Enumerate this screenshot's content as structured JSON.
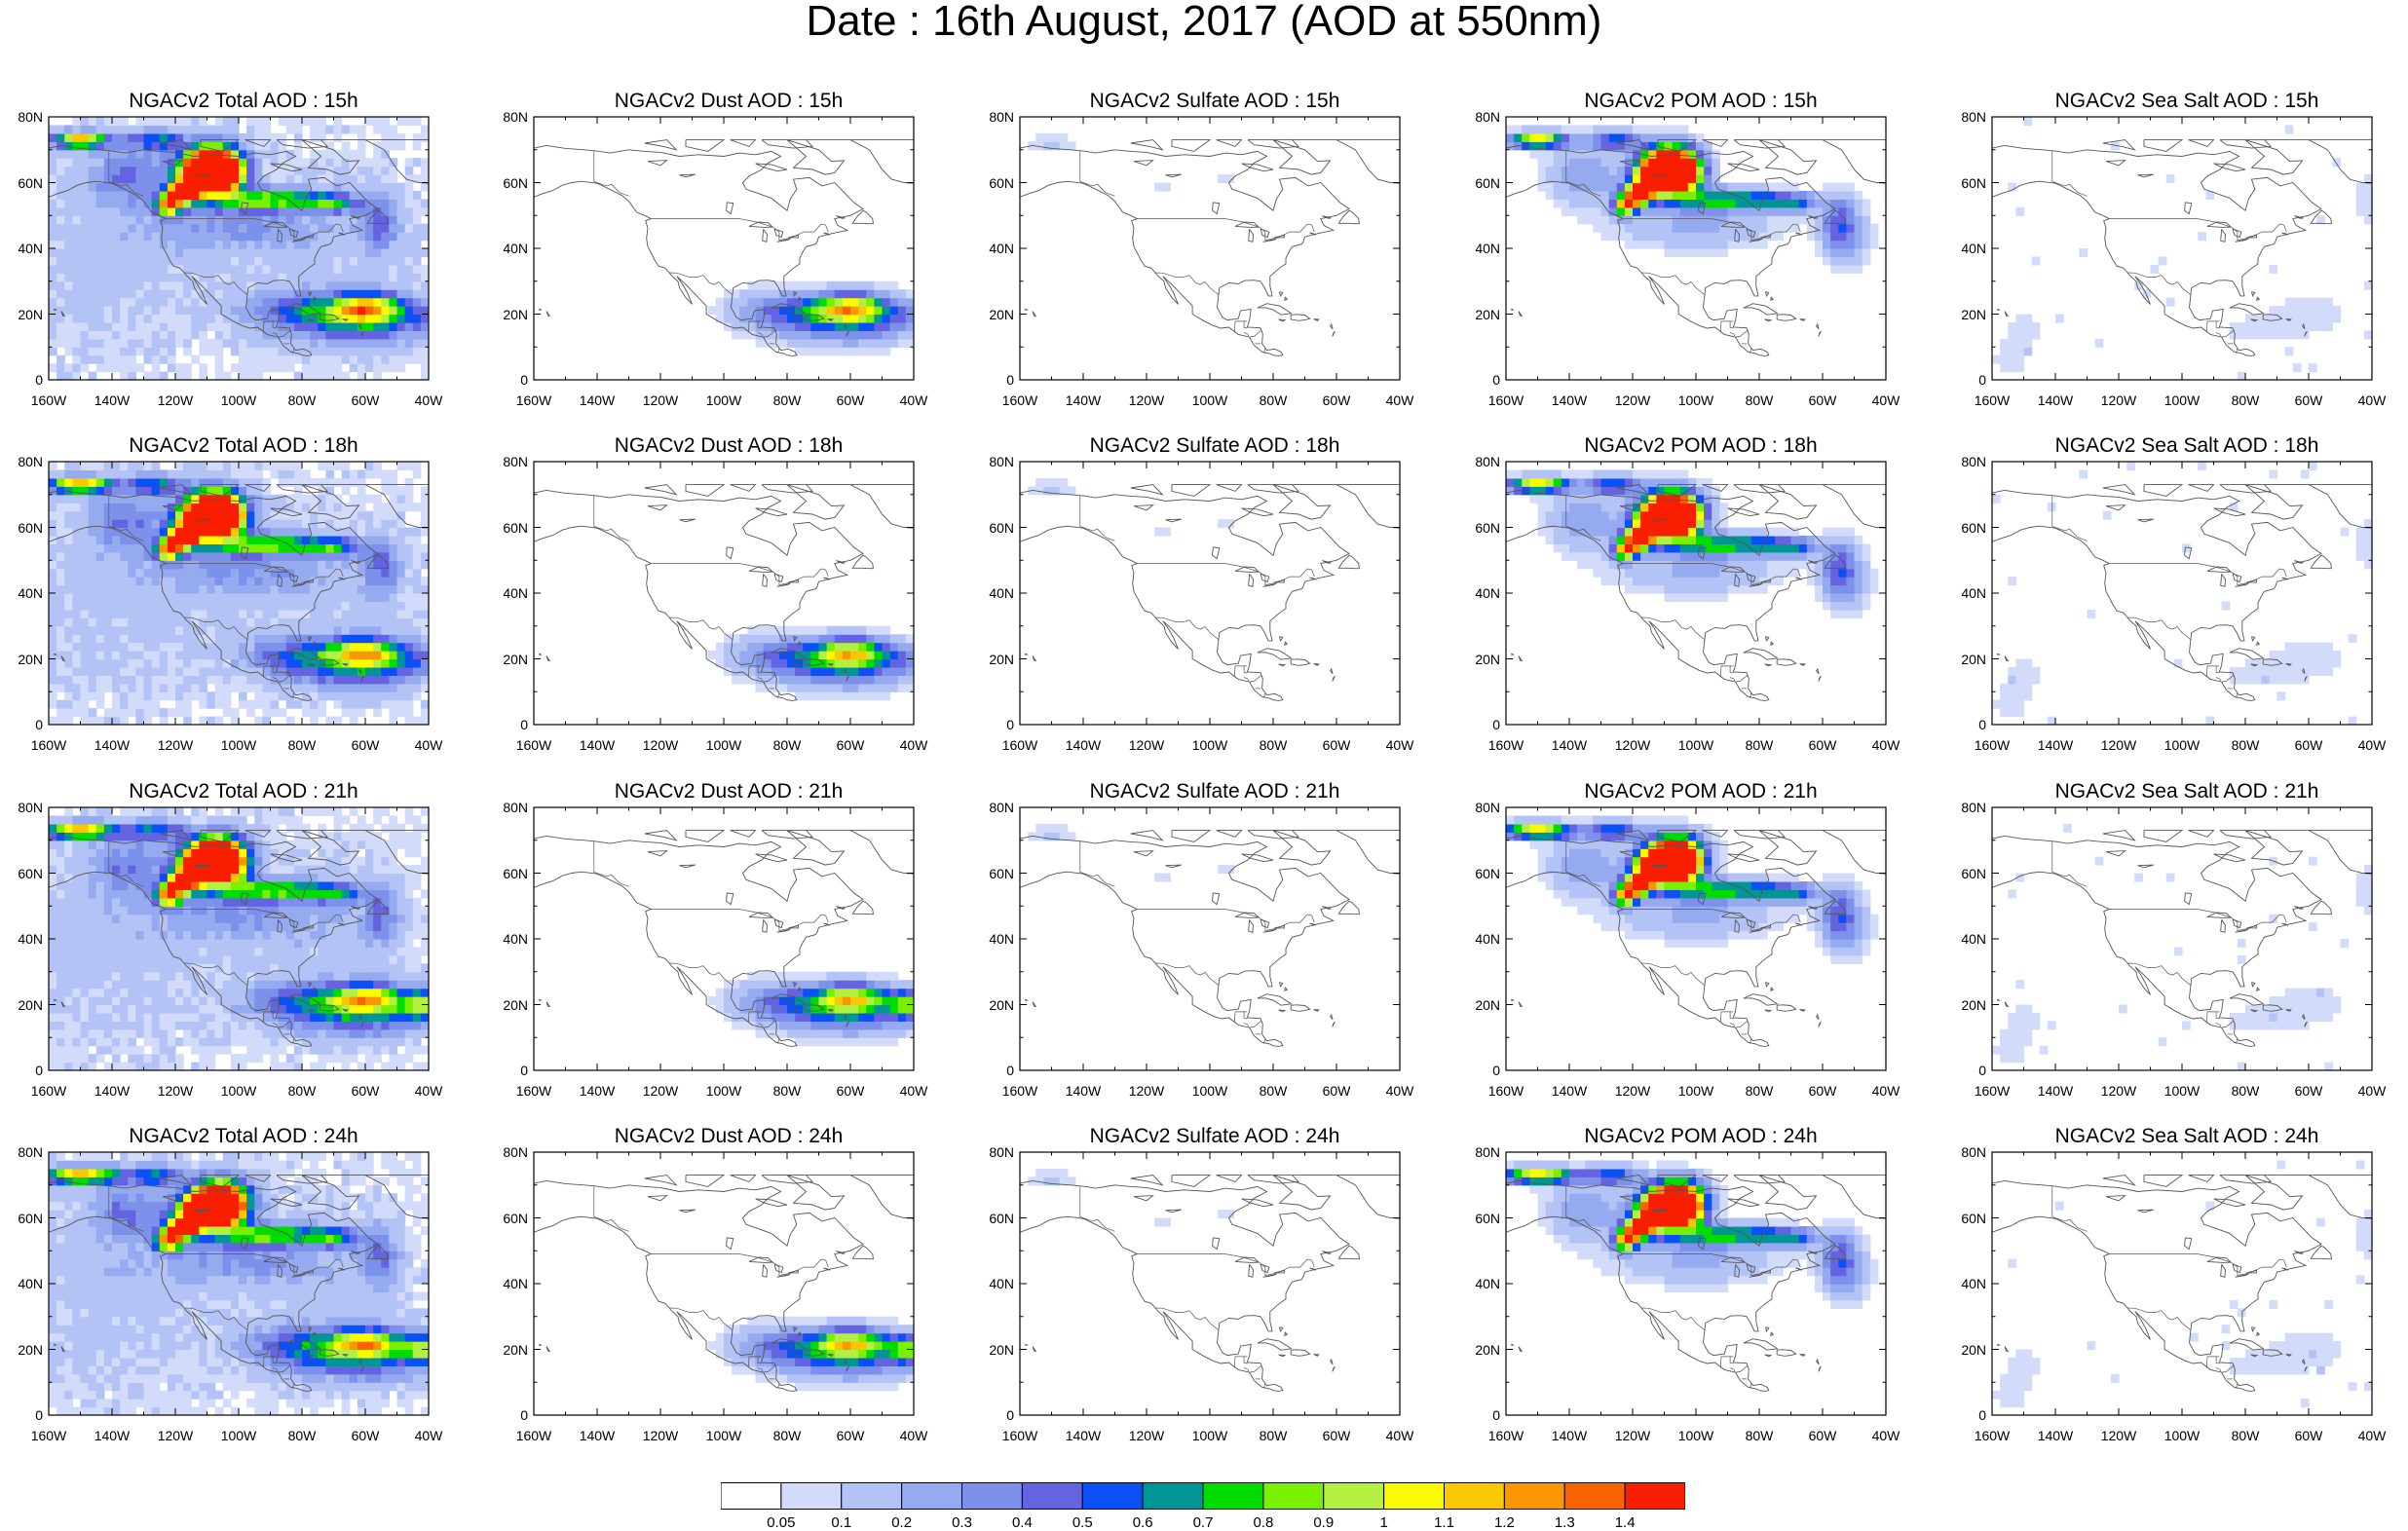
{
  "title": "Date : 16th August, 2017 (AOD at 550nm)",
  "lat_ticks": [
    "0",
    "20N",
    "40N",
    "60N",
    "80N"
  ],
  "lon_ticks": [
    "160W",
    "140W",
    "120W",
    "100W",
    "80W",
    "60W",
    "40W"
  ],
  "panels": [
    {
      "title": "NGACv2 Total AOD : 15h",
      "species": "total",
      "hour": 15
    },
    {
      "title": "NGACv2 Dust AOD : 15h",
      "species": "dust",
      "hour": 15
    },
    {
      "title": "NGACv2 Sulfate AOD : 15h",
      "species": "sulfate",
      "hour": 15
    },
    {
      "title": "NGACv2 POM AOD : 15h",
      "species": "pom",
      "hour": 15
    },
    {
      "title": "NGACv2 Sea Salt AOD : 15h",
      "species": "seasalt",
      "hour": 15
    },
    {
      "title": "NGACv2 Total AOD : 18h",
      "species": "total",
      "hour": 18
    },
    {
      "title": "NGACv2 Dust AOD : 18h",
      "species": "dust",
      "hour": 18
    },
    {
      "title": "NGACv2 Sulfate AOD : 18h",
      "species": "sulfate",
      "hour": 18
    },
    {
      "title": "NGACv2 POM AOD : 18h",
      "species": "pom",
      "hour": 18
    },
    {
      "title": "NGACv2 Sea Salt AOD : 18h",
      "species": "seasalt",
      "hour": 18
    },
    {
      "title": "NGACv2 Total AOD : 21h",
      "species": "total",
      "hour": 21
    },
    {
      "title": "NGACv2 Dust AOD : 21h",
      "species": "dust",
      "hour": 21
    },
    {
      "title": "NGACv2 Sulfate AOD : 21h",
      "species": "sulfate",
      "hour": 21
    },
    {
      "title": "NGACv2 POM AOD : 21h",
      "species": "pom",
      "hour": 21
    },
    {
      "title": "NGACv2 Sea Salt AOD : 21h",
      "species": "seasalt",
      "hour": 21
    },
    {
      "title": "NGACv2 Total AOD : 24h",
      "species": "total",
      "hour": 24
    },
    {
      "title": "NGACv2 Dust AOD : 24h",
      "species": "dust",
      "hour": 24
    },
    {
      "title": "NGACv2 Sulfate AOD : 24h",
      "species": "sulfate",
      "hour": 24
    },
    {
      "title": "NGACv2 POM AOD : 24h",
      "species": "pom",
      "hour": 24
    },
    {
      "title": "NGACv2 Sea Salt  AOD : 24h",
      "species": "seasalt",
      "hour": 24
    }
  ],
  "colorbar": {
    "labels": [
      "0.05",
      "0.1",
      "0.2",
      "0.3",
      "0.4",
      "0.5",
      "0.6",
      "0.7",
      "0.8",
      "0.9",
      "1",
      "1.1",
      "1.2",
      "1.3",
      "1.4"
    ],
    "colors": [
      "#ffffff",
      "#d2dcfa",
      "#b4c3f5",
      "#96aaf0",
      "#7d91eb",
      "#6464e1",
      "#0a50f5",
      "#009696",
      "#00dc00",
      "#78f000",
      "#b4f040",
      "#fafa00",
      "#fac800",
      "#fa9600",
      "#fa6400",
      "#fa1e00"
    ]
  }
}
